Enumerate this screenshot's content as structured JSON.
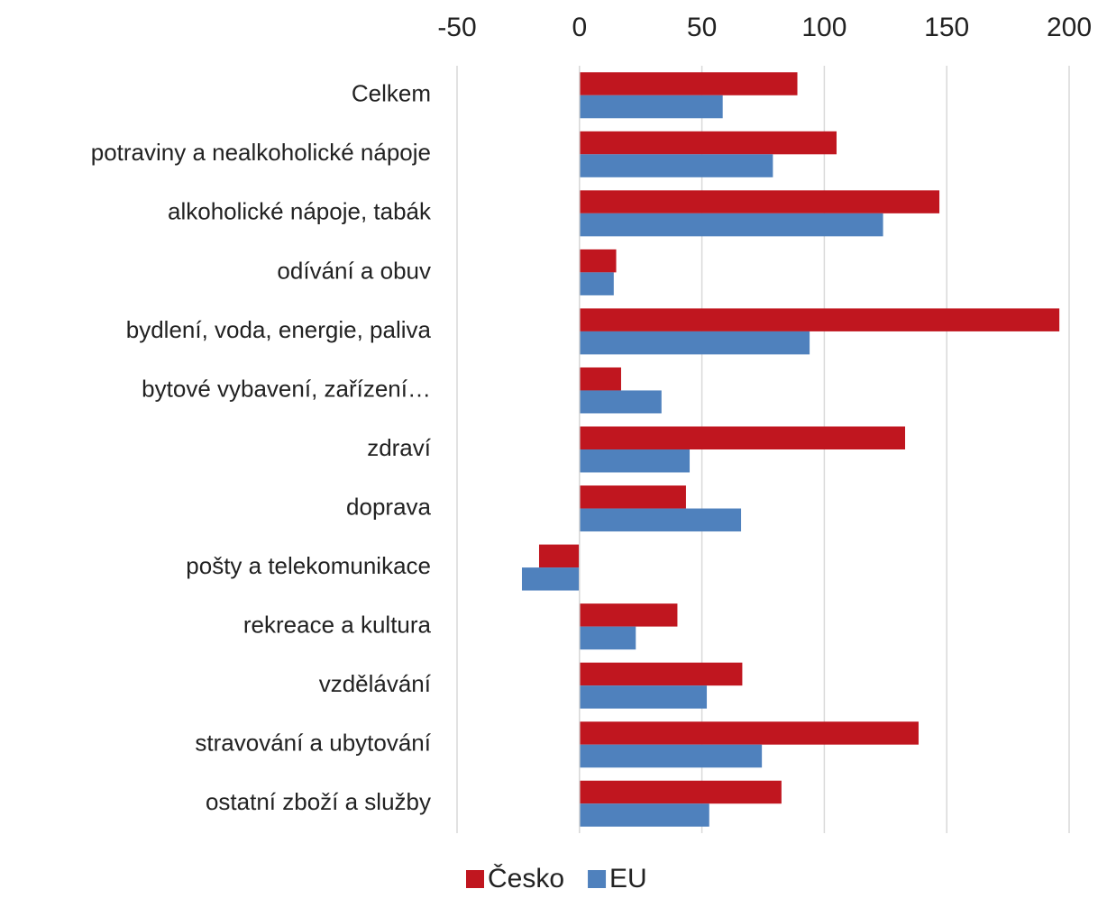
{
  "chart_data": {
    "type": "hbar",
    "categories": [
      "Celkem",
      "potraviny a nealkoholické nápoje",
      "alkoholické nápoje, tabák",
      "odívání a obuv",
      "bydlení, voda, energie, paliva",
      "bytové vybavení, zařízení…",
      "zdraví",
      "doprava",
      "pošty a telekomunikace",
      "rekreace a kultura",
      "vzdělávání",
      "stravování a ubytování",
      "ostatní zboží a služby"
    ],
    "series": [
      {
        "name": "Česko",
        "color": "#c0161f",
        "values": [
          89,
          105,
          147,
          15,
          196,
          17,
          133,
          43.5,
          -16.5,
          40,
          66.5,
          138.5,
          82.5
        ]
      },
      {
        "name": "EU",
        "color": "#4f81bd",
        "values": [
          58.5,
          79,
          124,
          14,
          94,
          33.5,
          45,
          66,
          -23.5,
          23,
          52,
          74.5,
          53
        ]
      }
    ],
    "xlim": [
      -50,
      200
    ],
    "xticks": [
      -50,
      0,
      50,
      100,
      150,
      200
    ],
    "grid": true,
    "legend": "bottom"
  }
}
